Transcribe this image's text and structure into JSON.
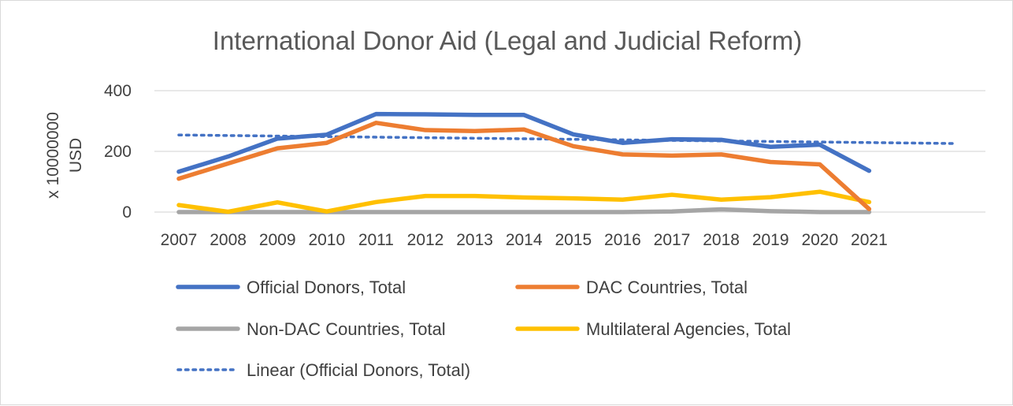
{
  "chart_data": {
    "type": "line",
    "title": "International Donor Aid (Legal and Judicial Reform)",
    "ylabel_line1": "x 10000000",
    "ylabel_line2": "USD",
    "xlabel": "",
    "ylim": [
      0,
      400
    ],
    "yticks": [
      0,
      200,
      400
    ],
    "grid": true,
    "legend_position": "bottom",
    "categories": [
      "2007",
      "2008",
      "2009",
      "2010",
      "2011",
      "2012",
      "2013",
      "2014",
      "2015",
      "2016",
      "2017",
      "2018",
      "2019",
      "2020",
      "2021"
    ],
    "series": [
      {
        "name": "Official Donors, Total",
        "color": "#4472c4",
        "values": [
          133,
          183,
          242,
          255,
          323,
          322,
          320,
          320,
          256,
          228,
          240,
          238,
          215,
          222,
          136
        ]
      },
      {
        "name": "DAC Countries, Total",
        "color": "#ed7d31",
        "values": [
          110,
          160,
          210,
          228,
          294,
          270,
          267,
          272,
          217,
          190,
          186,
          190,
          165,
          157,
          10
        ]
      },
      {
        "name": "Non-DAC Countries, Total",
        "color": "#a5a5a5",
        "values": [
          0,
          0,
          0,
          0,
          0,
          0,
          0,
          0,
          0,
          0,
          2,
          9,
          3,
          0,
          0
        ]
      },
      {
        "name": "Multilateral Agencies, Total",
        "color": "#ffc000",
        "values": [
          23,
          1,
          32,
          2,
          33,
          53,
          53,
          48,
          45,
          41,
          57,
          41,
          49,
          67,
          33
        ]
      }
    ],
    "trendline": {
      "name": "Linear (Official Donors, Total)",
      "color": "#4472c4",
      "style": "dotted",
      "of_series": "Official Donors, Total",
      "start_value": 254,
      "end_value": 229,
      "end_category": "2021"
    }
  }
}
